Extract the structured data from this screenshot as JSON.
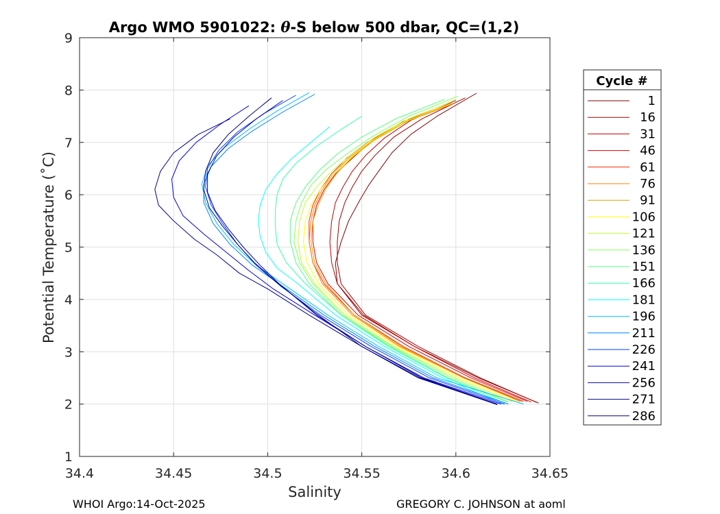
{
  "chart_data": {
    "type": "line",
    "title_prefix": "Argo WMO 5901022: ",
    "title_symbol": "θ",
    "title_suffix": "-S below 500 dbar,  QC=(1,2)",
    "xlabel": "Salinity",
    "ylabel": "Potential Temperature (˚C)",
    "xlim": [
      34.4,
      34.65
    ],
    "ylim": [
      1,
      9
    ],
    "xticks": [
      34.4,
      34.45,
      34.5,
      34.55,
      34.6,
      34.65
    ],
    "xtick_labels": [
      "34.4",
      "34.45",
      "34.5",
      "34.55",
      "34.6",
      "34.65"
    ],
    "yticks": [
      1,
      2,
      3,
      4,
      5,
      6,
      7,
      8,
      9
    ],
    "ytick_labels": [
      "1",
      "2",
      "3",
      "4",
      "5",
      "6",
      "7",
      "8",
      "9"
    ],
    "grid": true,
    "legend": {
      "title": "Cycle #",
      "placement": "outside-right",
      "entries": [
        "1",
        "16",
        "31",
        "46",
        "61",
        "76",
        "91",
        "106",
        "121",
        "136",
        "151",
        "166",
        "181",
        "196",
        "211",
        "226",
        "241",
        "256",
        "271",
        "286"
      ],
      "colors": [
        "#800000",
        "#a00000",
        "#c00000",
        "#e00000",
        "#ff2000",
        "#ff8000",
        "#e0a000",
        "#ffff00",
        "#c0ff30",
        "#80ff60",
        "#50ff80",
        "#30ffb0",
        "#00ffff",
        "#00c0ff",
        "#0080ff",
        "#0040ff",
        "#0000e0",
        "#0000b0",
        "#000090",
        "#000080"
      ]
    },
    "series": [
      {
        "name": "1",
        "x": [
          34.611,
          34.59,
          34.576,
          34.566,
          34.56,
          34.554,
          34.549,
          34.543,
          34.539,
          34.536,
          34.537,
          34.55,
          34.578,
          34.612,
          34.644
        ],
        "y": [
          7.94,
          7.5,
          7.15,
          6.8,
          6.5,
          6.2,
          5.9,
          5.5,
          5.1,
          4.7,
          4.3,
          3.7,
          3.1,
          2.5,
          2.02
        ]
      },
      {
        "name": "16",
        "x": [
          34.605,
          34.582,
          34.567,
          34.557,
          34.55,
          34.545,
          34.541,
          34.538,
          34.537,
          34.537,
          34.539,
          34.552,
          34.58,
          34.613,
          34.643
        ],
        "y": [
          7.85,
          7.45,
          7.1,
          6.75,
          6.45,
          6.15,
          5.85,
          5.5,
          5.1,
          4.7,
          4.3,
          3.7,
          3.1,
          2.5,
          2.03
        ]
      },
      {
        "name": "31",
        "x": [
          34.6,
          34.576,
          34.562,
          34.552,
          34.545,
          34.54,
          34.536,
          34.534,
          34.533,
          34.534,
          34.537,
          34.551,
          34.578,
          34.61,
          34.64
        ],
        "y": [
          7.8,
          7.42,
          7.08,
          6.75,
          6.45,
          6.15,
          5.85,
          5.5,
          5.1,
          4.7,
          4.3,
          3.7,
          3.1,
          2.5,
          2.04
        ]
      },
      {
        "name": "46",
        "x": [
          34.598,
          34.572,
          34.556,
          34.545,
          34.536,
          34.53,
          34.526,
          34.524,
          34.524,
          34.526,
          34.532,
          34.548,
          34.575,
          34.608,
          34.638
        ],
        "y": [
          7.75,
          7.4,
          7.05,
          6.7,
          6.4,
          6.1,
          5.8,
          5.5,
          5.1,
          4.7,
          4.3,
          3.7,
          3.1,
          2.5,
          2.05
        ]
      },
      {
        "name": "61",
        "x": [
          34.596,
          34.57,
          34.553,
          34.542,
          34.534,
          34.528,
          34.524,
          34.522,
          34.522,
          34.524,
          34.53,
          34.546,
          34.572,
          34.605,
          34.636
        ],
        "y": [
          7.7,
          7.35,
          7.0,
          6.7,
          6.4,
          6.1,
          5.8,
          5.5,
          5.1,
          4.7,
          4.3,
          3.7,
          3.1,
          2.5,
          2.05
        ]
      },
      {
        "name": "76",
        "x": [
          34.597,
          34.572,
          34.555,
          34.543,
          34.535,
          34.529,
          34.525,
          34.523,
          34.522,
          34.524,
          34.529,
          34.545,
          34.57,
          34.604,
          34.635
        ],
        "y": [
          7.72,
          7.38,
          7.02,
          6.7,
          6.4,
          6.1,
          5.8,
          5.5,
          5.1,
          4.7,
          4.3,
          3.7,
          3.1,
          2.5,
          2.05
        ]
      },
      {
        "name": "91",
        "x": [
          34.599,
          34.574,
          34.557,
          34.545,
          34.537,
          34.531,
          34.527,
          34.524,
          34.523,
          34.525,
          34.531,
          34.546,
          34.571,
          34.604,
          34.634
        ],
        "y": [
          7.75,
          7.4,
          7.05,
          6.72,
          6.42,
          6.12,
          5.82,
          5.5,
          5.1,
          4.7,
          4.3,
          3.7,
          3.1,
          2.5,
          2.05
        ]
      },
      {
        "name": "106",
        "x": [
          34.598,
          34.573,
          34.556,
          34.544,
          34.535,
          34.528,
          34.523,
          34.52,
          34.519,
          34.521,
          34.527,
          34.543,
          34.569,
          34.602,
          34.632
        ],
        "y": [
          7.75,
          7.4,
          7.05,
          6.7,
          6.4,
          6.1,
          5.8,
          5.5,
          5.1,
          4.7,
          4.3,
          3.7,
          3.1,
          2.5,
          2.05
        ]
      },
      {
        "name": "121",
        "x": [
          34.6,
          34.575,
          34.557,
          34.544,
          34.534,
          34.526,
          34.52,
          34.517,
          34.516,
          34.518,
          34.525,
          34.541,
          34.567,
          34.6,
          34.63
        ],
        "y": [
          7.82,
          7.45,
          7.1,
          6.75,
          6.45,
          6.15,
          5.85,
          5.5,
          5.1,
          4.7,
          4.3,
          3.7,
          3.1,
          2.5,
          2.05
        ]
      },
      {
        "name": "136",
        "x": [
          34.601,
          34.575,
          34.556,
          34.542,
          34.531,
          34.523,
          34.518,
          34.515,
          34.514,
          34.517,
          34.524,
          34.54,
          34.566,
          34.598,
          34.628
        ],
        "y": [
          7.88,
          7.5,
          7.12,
          6.78,
          6.48,
          6.18,
          5.85,
          5.5,
          5.1,
          4.7,
          4.3,
          3.7,
          3.1,
          2.5,
          2.04
        ]
      },
      {
        "name": "151",
        "x": [
          34.594,
          34.568,
          34.55,
          34.537,
          34.527,
          34.52,
          34.515,
          34.512,
          34.512,
          34.515,
          34.522,
          34.539,
          34.565,
          34.596,
          34.627
        ],
        "y": [
          7.82,
          7.45,
          7.1,
          6.78,
          6.45,
          6.15,
          5.85,
          5.5,
          5.1,
          4.7,
          4.3,
          3.7,
          3.1,
          2.5,
          2.04
        ]
      },
      {
        "name": "166",
        "x": [
          34.55,
          34.537,
          34.525,
          34.515,
          34.508,
          34.505,
          34.504,
          34.504,
          34.505,
          34.51,
          34.52,
          34.539,
          34.564,
          34.595,
          34.626
        ],
        "y": [
          7.5,
          7.2,
          6.9,
          6.6,
          6.3,
          6.0,
          5.7,
          5.4,
          5.05,
          4.7,
          4.3,
          3.7,
          3.1,
          2.5,
          2.02
        ]
      },
      {
        "name": "181",
        "x": [
          34.533,
          34.523,
          34.513,
          34.505,
          34.499,
          34.496,
          34.495,
          34.496,
          34.499,
          34.505,
          34.516,
          34.536,
          34.562,
          34.593,
          34.625
        ],
        "y": [
          7.3,
          7.0,
          6.7,
          6.4,
          6.1,
          5.8,
          5.5,
          5.2,
          4.9,
          4.6,
          4.3,
          3.7,
          3.1,
          2.5,
          2.0
        ]
      },
      {
        "name": "196",
        "x": [
          34.522,
          34.505,
          34.49,
          34.477,
          34.468,
          34.465,
          34.467,
          34.473,
          34.482,
          34.494,
          34.51,
          34.532,
          34.559,
          34.59,
          34.636
        ],
        "y": [
          7.95,
          7.6,
          7.25,
          6.9,
          6.55,
          6.2,
          5.85,
          5.45,
          5.05,
          4.65,
          4.25,
          3.7,
          3.1,
          2.5,
          2.0
        ]
      },
      {
        "name": "211",
        "x": [
          34.525,
          34.508,
          34.492,
          34.479,
          34.47,
          34.466,
          34.466,
          34.471,
          34.48,
          34.492,
          34.508,
          34.53,
          34.557,
          34.588,
          34.628
        ],
        "y": [
          7.92,
          7.58,
          7.22,
          6.88,
          6.54,
          6.2,
          5.85,
          5.45,
          5.05,
          4.65,
          4.25,
          3.7,
          3.1,
          2.5,
          2.0
        ]
      },
      {
        "name": "226",
        "x": [
          34.515,
          34.498,
          34.484,
          34.474,
          34.468,
          34.467,
          34.47,
          34.476,
          34.484,
          34.494,
          34.507,
          34.528,
          34.555,
          34.586,
          34.626
        ],
        "y": [
          7.9,
          7.55,
          7.2,
          6.85,
          6.5,
          6.15,
          5.8,
          5.45,
          5.05,
          4.65,
          4.25,
          3.7,
          3.1,
          2.5,
          2.0
        ]
      },
      {
        "name": "241",
        "x": [
          34.49,
          34.475,
          34.462,
          34.453,
          34.449,
          34.45,
          34.455,
          34.466,
          34.478,
          34.49,
          34.503,
          34.525,
          34.552,
          34.583,
          34.624
        ],
        "y": [
          7.7,
          7.35,
          7.0,
          6.65,
          6.3,
          5.95,
          5.6,
          5.25,
          4.9,
          4.55,
          4.2,
          3.7,
          3.1,
          2.5,
          2.0
        ]
      },
      {
        "name": "256",
        "x": [
          34.508,
          34.494,
          34.482,
          34.473,
          34.468,
          34.468,
          34.472,
          34.479,
          34.487,
          34.496,
          34.506,
          34.526,
          34.552,
          34.582,
          34.622
        ],
        "y": [
          7.8,
          7.45,
          7.1,
          6.75,
          6.4,
          6.05,
          5.7,
          5.35,
          5.0,
          4.65,
          4.3,
          3.7,
          3.1,
          2.5,
          2.0
        ]
      },
      {
        "name": "271",
        "x": [
          34.48,
          34.463,
          34.45,
          34.443,
          34.44,
          34.442,
          34.45,
          34.461,
          34.473,
          34.485,
          34.5,
          34.522,
          34.55,
          34.581,
          34.622
        ],
        "y": [
          7.45,
          7.15,
          6.8,
          6.45,
          6.1,
          5.8,
          5.5,
          5.15,
          4.85,
          4.5,
          4.2,
          3.7,
          3.1,
          2.5,
          1.99
        ]
      },
      {
        "name": "286",
        "x": [
          34.502,
          34.49,
          34.479,
          34.471,
          34.467,
          34.466,
          34.469,
          34.476,
          34.484,
          34.493,
          34.504,
          34.525,
          34.55,
          34.58,
          34.622
        ],
        "y": [
          7.85,
          7.5,
          7.15,
          6.8,
          6.45,
          6.1,
          5.75,
          5.4,
          5.05,
          4.7,
          4.35,
          3.75,
          3.1,
          2.5,
          1.99
        ]
      }
    ]
  },
  "footer": {
    "left": "WHOI Argo:14-Oct-2025",
    "right": "GREGORY C. JOHNSON at aoml"
  }
}
